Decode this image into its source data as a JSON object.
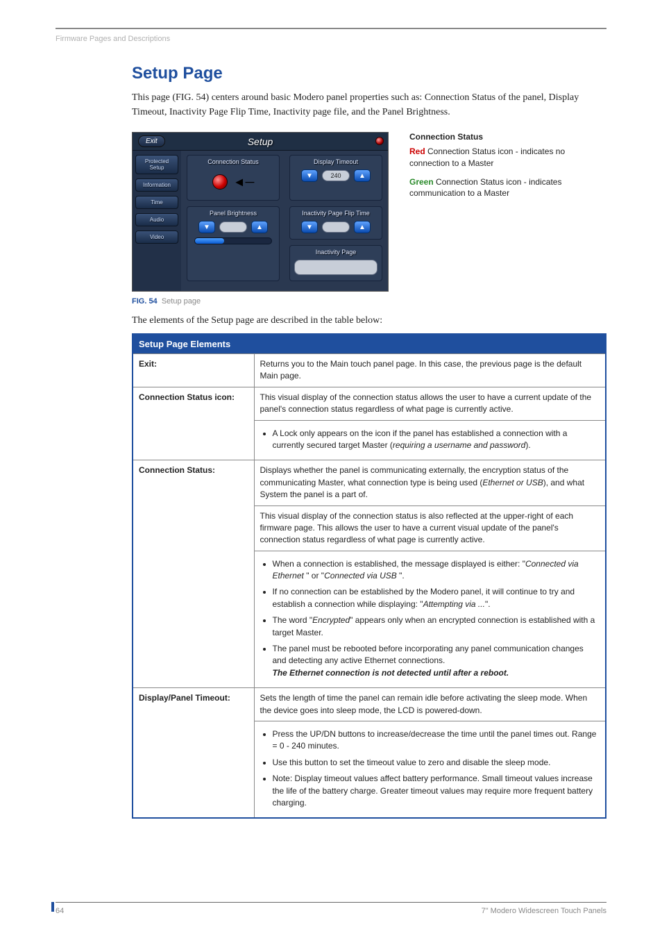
{
  "breadcrumb": "Firmware Pages and Descriptions",
  "heading": "Setup Page",
  "intro": "This page (FIG. 54) centers around basic Modero panel properties such as: Connection Status of the panel, Display Timeout, Inactivity Page Flip Time, Inactivity page file, and the Panel Brightness.",
  "figure": {
    "exit_label": "Exit",
    "title": "Setup",
    "sidebar": [
      "Protected Setup",
      "Information",
      "Time",
      "Audio",
      "Video"
    ],
    "groups": {
      "conn_status": "Connection Status",
      "display_timeout": "Display Timeout",
      "panel_brightness": "Panel Brightness",
      "inactivity_flip": "Inactivity Page Flip Time",
      "inactivity_page": "Inactivity Page"
    },
    "timeout_value": "240"
  },
  "callouts": {
    "title": "Connection Status",
    "red_word": "Red",
    "red_rest": " Connection Status icon - indicates no connection to a Master",
    "green_word": "Green",
    "green_rest": " Connection Status icon - indicates communication to a Master"
  },
  "fig_caption_num": "FIG. 54",
  "fig_caption_txt": "Setup page",
  "leadin": "The elements of the Setup page are described in the table below:",
  "table": {
    "title": "Setup Page Elements",
    "rows": [
      {
        "label": "Exit:",
        "body": [
          {
            "type": "p",
            "text": "Returns you to the Main touch panel page. In this case, the previous page is the default Main page."
          }
        ]
      },
      {
        "label": "Connection Status icon:",
        "body": [
          {
            "type": "p",
            "text": "This visual display of the connection status allows the user to have a current update of the panel's connection status regardless of what page is currently active."
          },
          {
            "type": "ul",
            "items": [
              {
                "plain": "A Lock only appears on the icon if the panel has established a connection with a currently secured target Master (",
                "ital": "requiring a username and password",
                "after": ")."
              }
            ]
          }
        ]
      },
      {
        "label": "Connection Status:",
        "body": [
          {
            "type": "p",
            "html": "Displays whether the panel is communicating externally, the encryption status of the communicating Master, what connection type is being used (<span class='ital'>Ethernet or USB</span>), and what System the panel is a part of."
          },
          {
            "type": "p",
            "text": "This visual display of the connection status is also reflected at the upper-right of each firmware page. This allows the user to have a current visual update of the panel's connection status regardless of what page is currently active."
          },
          {
            "type": "ul",
            "items": [
              {
                "html": "When a connection is established, the message displayed is either: \"<span class='ital'>Connected via Ethernet</span> \" or  \"<span class='ital'>Connected via USB</span> \"."
              },
              {
                "html": "If no connection can be established by the Modero panel, it will continue to try and establish a connection while displaying: \"<span class='ital'>Attempting via ...</span>\"."
              },
              {
                "html": "The word \"<span class='ital'>Encrypted</span>\" appears only when an encrypted connection is established with a target Master."
              },
              {
                "html": "The panel must be rebooted before incorporating any panel communication changes and detecting any active Ethernet connections.<br><span class='bi'>The Ethernet connection is not detected until after a reboot.</span>"
              }
            ]
          }
        ]
      },
      {
        "label": "Display/Panel Timeout:",
        "body": [
          {
            "type": "p",
            "text": "Sets the length of time the panel can remain idle before activating the sleep mode. When the device goes into sleep mode, the LCD is powered-down."
          },
          {
            "type": "ul",
            "items": [
              {
                "text": "Press the UP/DN buttons to increase/decrease the time until the panel times out. Range = 0 - 240 minutes."
              },
              {
                "text": "Use this button to set the timeout value to zero and disable the sleep mode."
              },
              {
                "text": "Note: Display timeout values affect battery performance. Small timeout values increase the life of the battery charge. Greater timeout values may require more frequent battery charging."
              }
            ]
          }
        ]
      }
    ]
  },
  "footer": {
    "page": "64",
    "title": "7\" Modero Widescreen Touch Panels"
  },
  "colors": {
    "accent": "#1f4f9e",
    "red": "#cc0000",
    "green": "#2a8a2a",
    "panel_bg": "#2a3850"
  }
}
